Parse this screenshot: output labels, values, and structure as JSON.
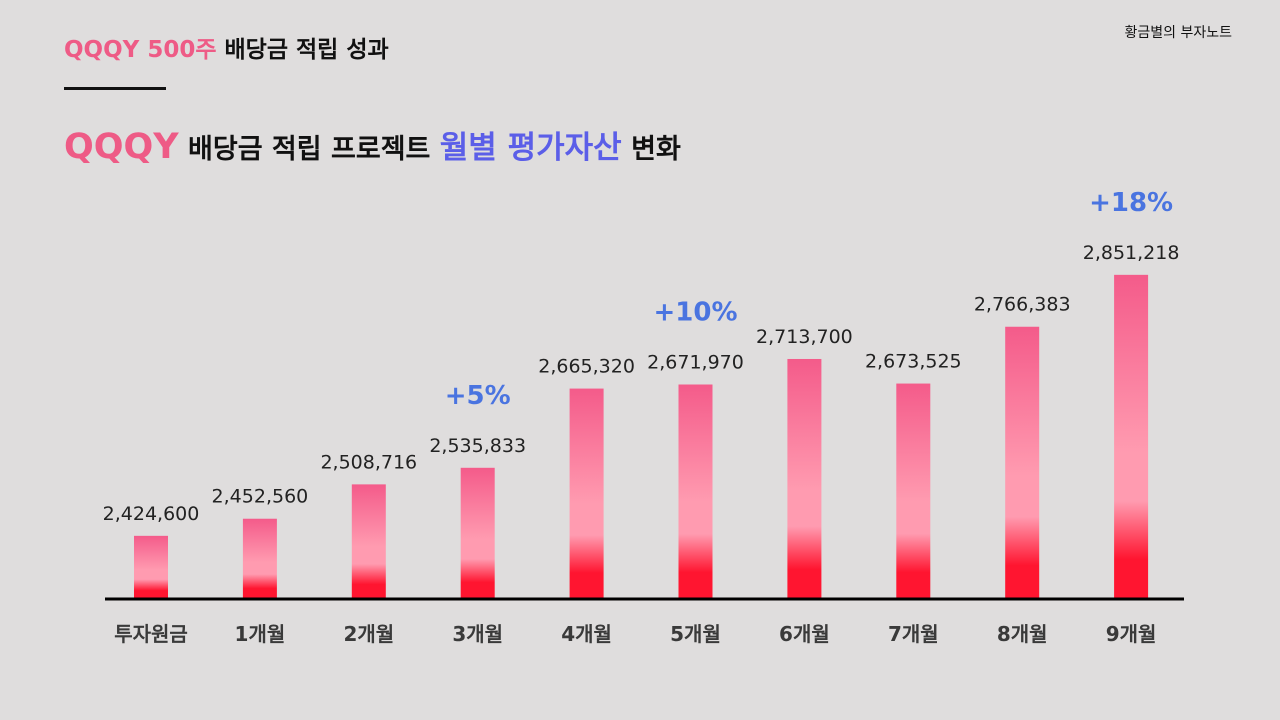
{
  "header": {
    "title_accent": "QQQY 500주",
    "title_rest": "배당금 적립 성과",
    "brand": "황금별의 부자노트"
  },
  "headline": {
    "part1": "QQQY",
    "part2": "배당금 적립 프로젝트",
    "part3": "월별 평가자산",
    "part4": "변화"
  },
  "colors": {
    "pink_accent": "#ee5b86",
    "blue_accent": "#5b5ee8",
    "gain_label": "#4a74e0",
    "bar_top": "#f45b8a",
    "bar_mid": "#ff9bb0",
    "bar_bottom": "#ff1530"
  },
  "chart_data": {
    "type": "bar",
    "title": "QQQY 배당금 적립 프로젝트 월별 평가자산 변화",
    "categories": [
      "투자원금",
      "1개월",
      "2개월",
      "3개월",
      "4개월",
      "5개월",
      "6개월",
      "7개월",
      "8개월",
      "9개월"
    ],
    "values": [
      2424600,
      2452560,
      2508716,
      2535833,
      2665320,
      2671970,
      2713700,
      2673525,
      2766383,
      2851218
    ],
    "value_labels": [
      "2,424,600",
      "2,452,560",
      "2,508,716",
      "2,535,833",
      "2,665,320",
      "2,671,970",
      "2,713,700",
      "2,673,525",
      "2,766,383",
      "2,851,218"
    ],
    "annotations": [
      {
        "category_index": 3,
        "text": "+5%"
      },
      {
        "category_index": 5,
        "text": "+10%"
      },
      {
        "category_index": 9,
        "text": "+18%"
      }
    ],
    "ylim": [
      2323000,
      2900000
    ],
    "xlabel": "",
    "ylabel": "",
    "grid": false,
    "legend": "none"
  }
}
